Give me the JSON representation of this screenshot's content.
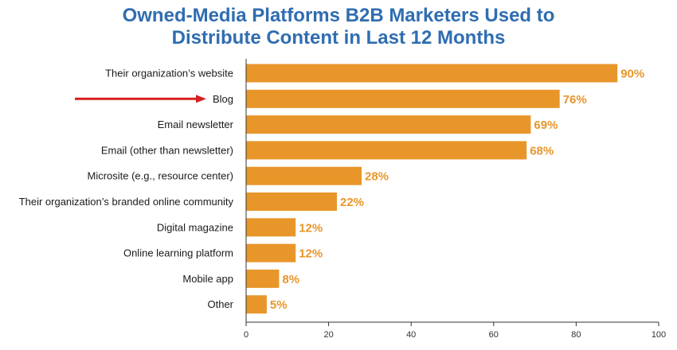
{
  "title_lines": [
    "Owned-Media Platforms B2B Marketers Used to",
    "Distribute Content in Last 12 Months"
  ],
  "colors": {
    "title": "#2f6db1",
    "bar": "#e8962a",
    "value_label": "#e8962a",
    "arrow": "#d4201f",
    "axis": "#333333"
  },
  "highlight": {
    "category": "Blog",
    "marker": "red-arrow"
  },
  "chart_data": {
    "type": "bar",
    "orientation": "horizontal",
    "categories": [
      "Their organization’s website",
      "Blog",
      "Email newsletter",
      "Email (other than newsletter)",
      "Microsite (e.g., resource center)",
      "Their organization’s branded online community",
      "Digital magazine",
      "Online learning platform",
      "Mobile app",
      "Other"
    ],
    "values": [
      90,
      76,
      69,
      68,
      28,
      22,
      12,
      12,
      8,
      5
    ],
    "value_labels": [
      "90%",
      "76%",
      "69%",
      "68%",
      "28%",
      "22%",
      "12%",
      "12%",
      "8%",
      "5%"
    ],
    "xlim": [
      0,
      100
    ],
    "x_ticks": [
      0,
      20,
      40,
      60,
      80,
      100
    ],
    "x_tick_labels": [
      "0",
      "20",
      "40",
      "60",
      "80",
      "100"
    ],
    "grid": false,
    "legend": "none"
  }
}
